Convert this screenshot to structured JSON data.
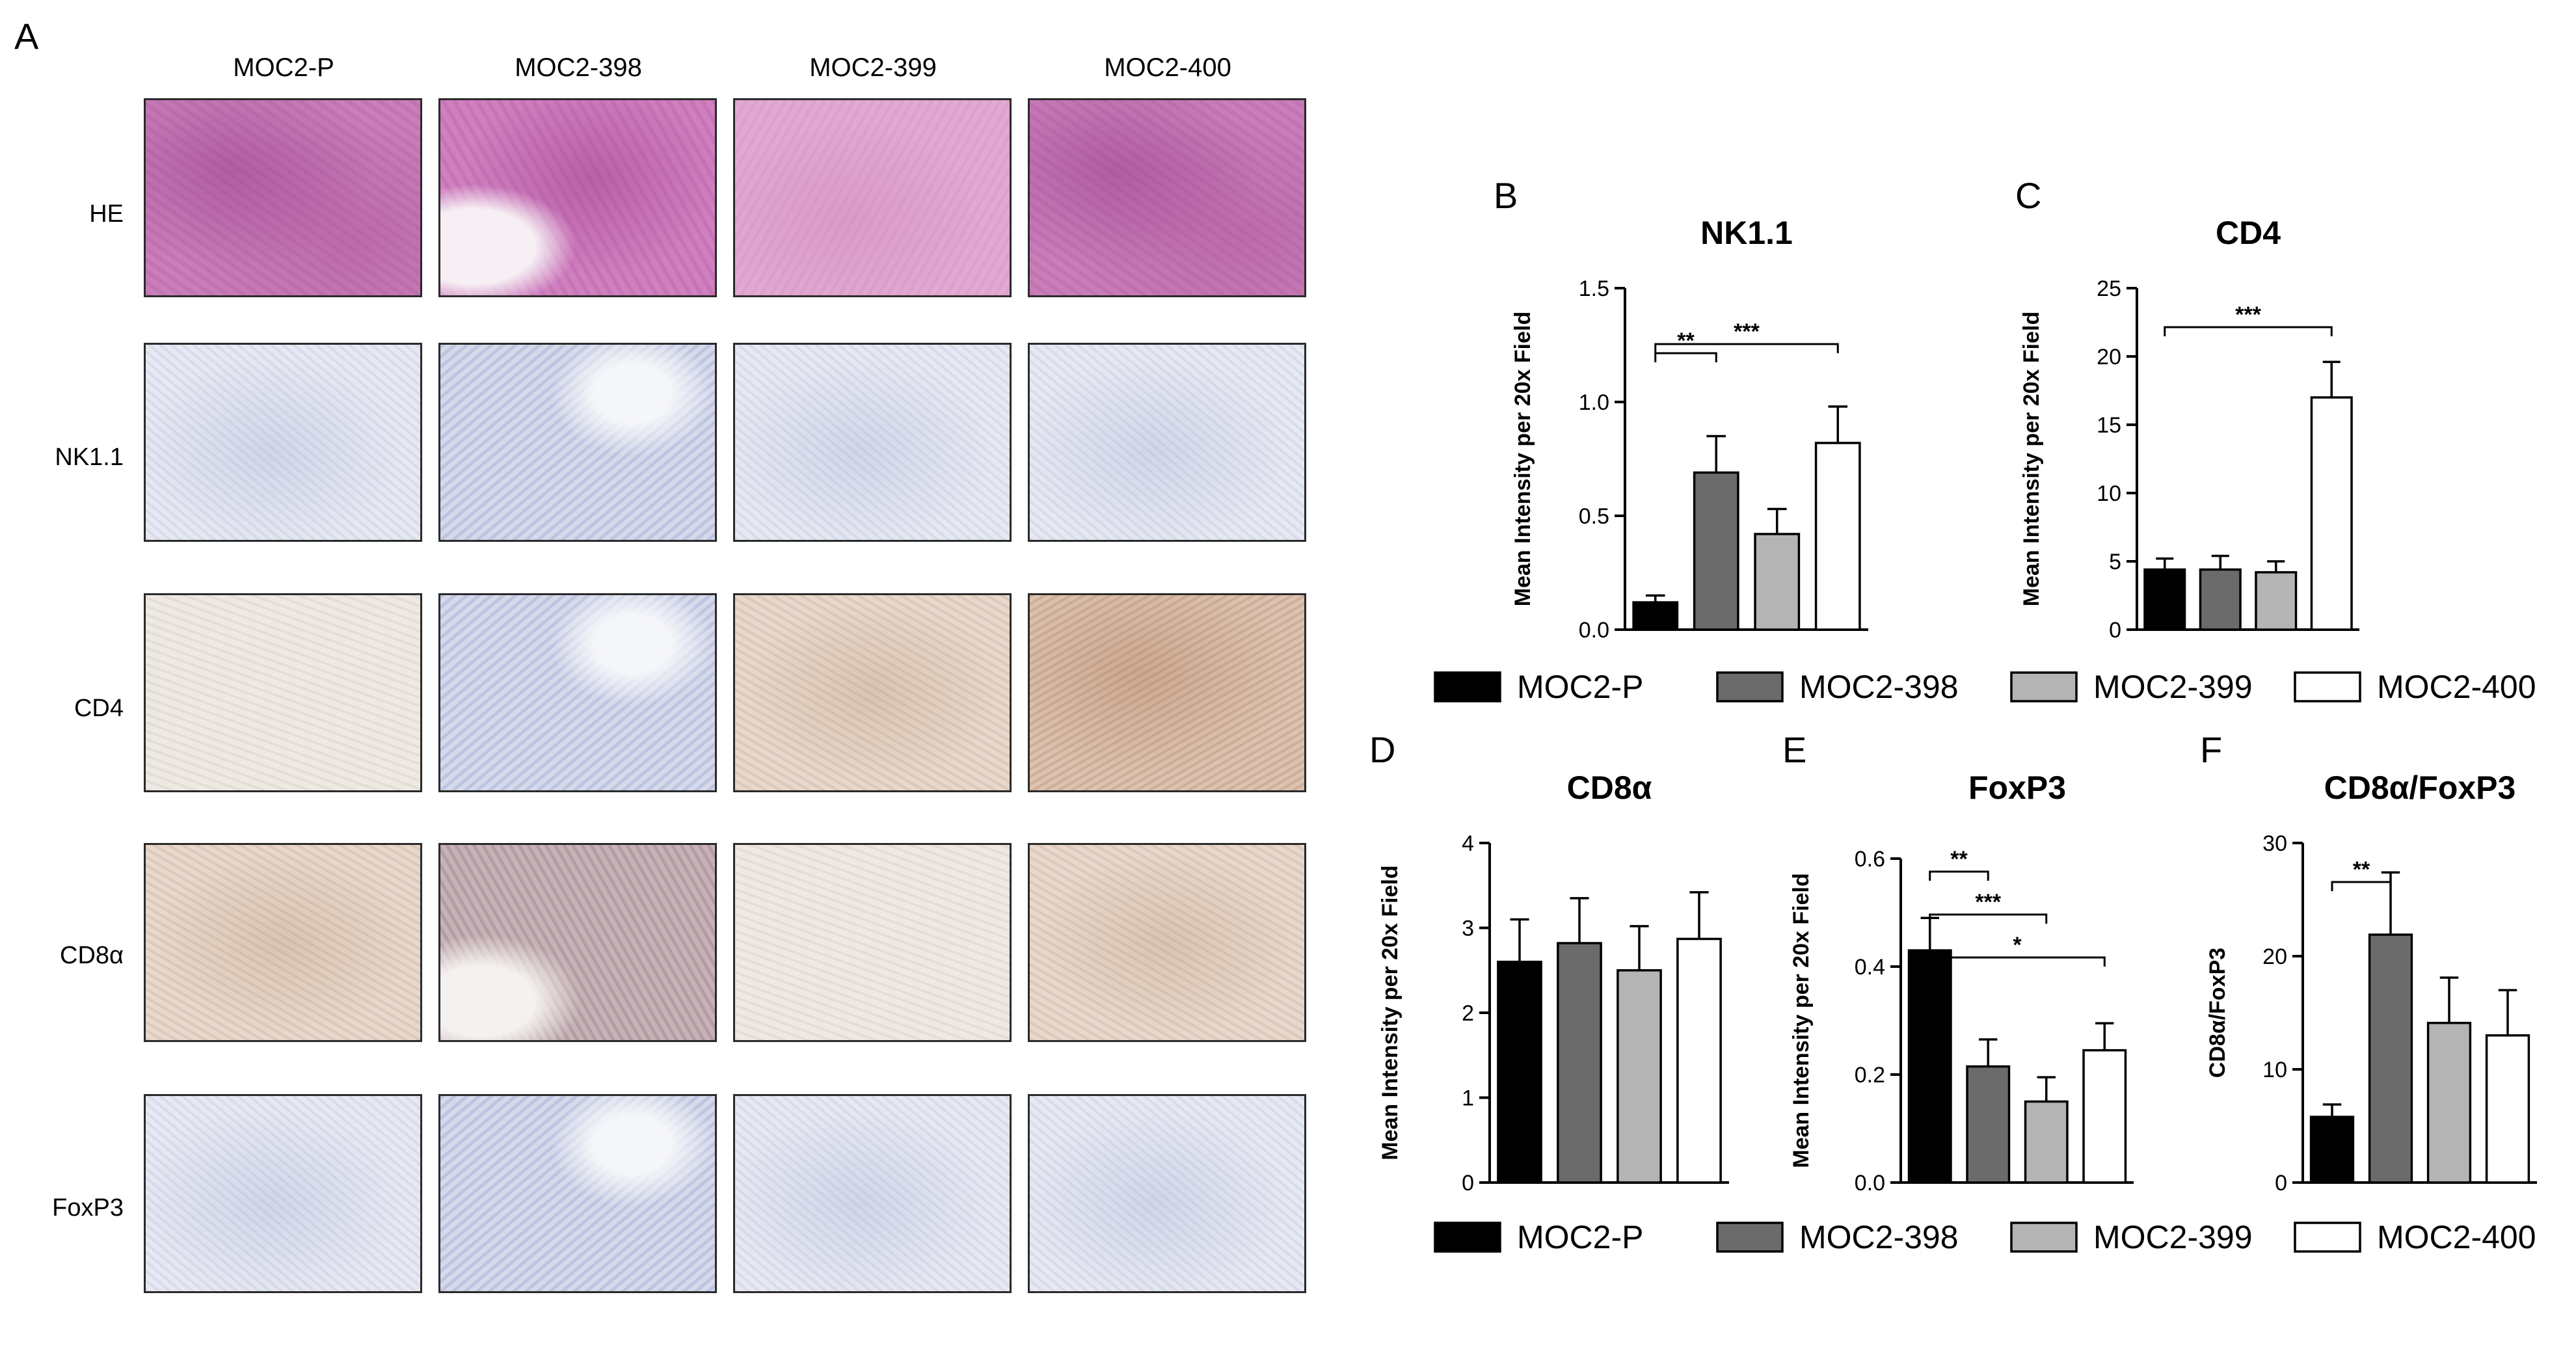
{
  "panel_a": {
    "letter": "A",
    "columns": [
      "MOC2-P",
      "MOC2-398",
      "MOC2-399",
      "MOC2-400"
    ],
    "rows": [
      "HE",
      "NK1.1",
      "CD4",
      "CD8α",
      "FoxP3"
    ]
  },
  "legend_items": [
    {
      "label": "MOC2-P",
      "color": "#000000"
    },
    {
      "label": "MOC2-398",
      "color": "#6b6b6b"
    },
    {
      "label": "MOC2-399",
      "color": "#b4b4b4"
    },
    {
      "label": "MOC2-400",
      "color": "#ffffff"
    }
  ],
  "chart_data": [
    {
      "panel": "B",
      "type": "bar",
      "title": "NK1.1",
      "ylabel": "Mean Intensity per 20x Field",
      "categories": [
        "MOC2-P",
        "MOC2-398",
        "MOC2-399",
        "MOC2-400"
      ],
      "values": [
        0.12,
        0.69,
        0.42,
        0.82
      ],
      "errors": [
        0.03,
        0.16,
        0.11,
        0.16
      ],
      "ylim": [
        0,
        1.5
      ],
      "yticks": [
        "0.0",
        "0.5",
        "1.0",
        "1.5"
      ],
      "significance": [
        {
          "from": 0,
          "to": 1,
          "label": "**"
        },
        {
          "from": 0,
          "to": 3,
          "label": "***"
        }
      ]
    },
    {
      "panel": "C",
      "type": "bar",
      "title": "CD4",
      "ylabel": "Mean Intensity per 20x Field",
      "categories": [
        "MOC2-P",
        "MOC2-398",
        "MOC2-399",
        "MOC2-400"
      ],
      "values": [
        4.4,
        4.4,
        4.2,
        17.0
      ],
      "errors": [
        0.8,
        1.0,
        0.8,
        2.6
      ],
      "ylim": [
        0,
        25
      ],
      "yticks": [
        "0",
        "5",
        "10",
        "15",
        "20",
        "25"
      ],
      "significance": [
        {
          "from": 0,
          "to": 3,
          "label": "***"
        }
      ]
    },
    {
      "panel": "D",
      "type": "bar",
      "title": "CD8α",
      "ylabel": "Mean Intensity per 20x Field",
      "categories": [
        "MOC2-P",
        "MOC2-398",
        "MOC2-399",
        "MOC2-400"
      ],
      "values": [
        2.6,
        2.82,
        2.5,
        2.87
      ],
      "errors": [
        0.5,
        0.53,
        0.52,
        0.55
      ],
      "ylim": [
        0,
        4
      ],
      "yticks": [
        "0",
        "1",
        "2",
        "3",
        "4"
      ],
      "significance": []
    },
    {
      "panel": "E",
      "type": "bar",
      "title": "FoxP3",
      "ylabel": "Mean Intensity per 20x Field",
      "categories": [
        "MOC2-P",
        "MOC2-398",
        "MOC2-399",
        "MOC2-400"
      ],
      "values": [
        0.43,
        0.215,
        0.15,
        0.245
      ],
      "errors": [
        0.06,
        0.05,
        0.045,
        0.05
      ],
      "ylim": [
        0,
        0.6
      ],
      "yticks": [
        "0.0",
        "0.2",
        "0.4",
        "0.6"
      ],
      "significance": [
        {
          "from": 0,
          "to": 1,
          "label": "**"
        },
        {
          "from": 0,
          "to": 2,
          "label": "***"
        },
        {
          "from": 0,
          "to": 3,
          "label": "*"
        }
      ]
    },
    {
      "panel": "F",
      "type": "bar",
      "title": "CD8α/FoxP3",
      "ylabel": "CD8α/FoxP3",
      "categories": [
        "MOC2-P",
        "MOC2-398",
        "MOC2-399",
        "MOC2-400"
      ],
      "values": [
        5.8,
        21.9,
        14.1,
        13.0
      ],
      "errors": [
        1.1,
        5.5,
        4.0,
        4.0
      ],
      "ylim": [
        0,
        30
      ],
      "yticks": [
        "0",
        "10",
        "20",
        "30"
      ],
      "significance": [
        {
          "from": 0,
          "to": 1,
          "label": "**"
        }
      ]
    }
  ]
}
